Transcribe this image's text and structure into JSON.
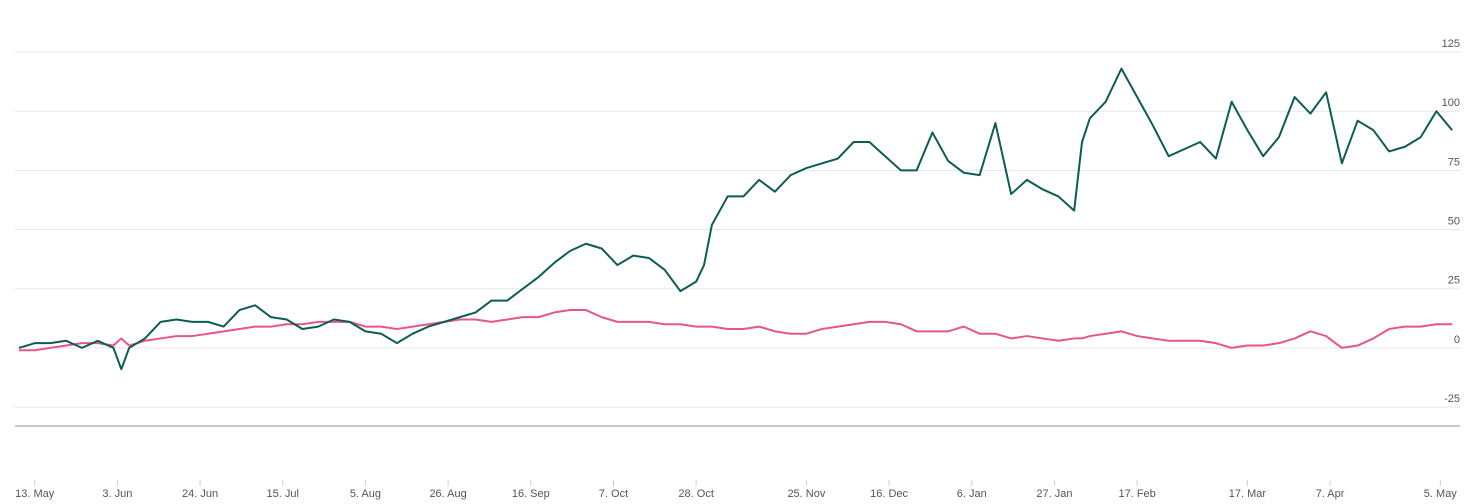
{
  "chart_data": {
    "type": "line",
    "x": [
      -4,
      0,
      4,
      8,
      12,
      16,
      20,
      22,
      24,
      28,
      32,
      36,
      40,
      44,
      48,
      52,
      56,
      60,
      64,
      68,
      72,
      76,
      80,
      84,
      88,
      92,
      96,
      100,
      104,
      108,
      112,
      116,
      120,
      124,
      128,
      132,
      136,
      140,
      144,
      148,
      152,
      156,
      160,
      164,
      168,
      170,
      172,
      176,
      180,
      184,
      188,
      192,
      196,
      200,
      204,
      208,
      212,
      216,
      220,
      224,
      228,
      232,
      236,
      240,
      244,
      248,
      252,
      256,
      260,
      264,
      266,
      268,
      272,
      276,
      280,
      284,
      288,
      292,
      296,
      300,
      304,
      308,
      312,
      316,
      320,
      324,
      328,
      332,
      336,
      340,
      344,
      348,
      352,
      356,
      360
    ],
    "series": [
      {
        "color": "#0d5c55",
        "values": [
          0,
          2,
          2,
          3,
          0,
          3,
          0,
          -9,
          0,
          4,
          11,
          12,
          11,
          11,
          9,
          16,
          18,
          13,
          12,
          8,
          9,
          12,
          11,
          7,
          6,
          2,
          6,
          9,
          11,
          13,
          15,
          20,
          20,
          25,
          30,
          36,
          41,
          44,
          42,
          35,
          39,
          38,
          33,
          24,
          28,
          35,
          52,
          64,
          64,
          71,
          66,
          73,
          76,
          78,
          80,
          87,
          87,
          81,
          75,
          75,
          91,
          79,
          74,
          73,
          95,
          65,
          71,
          67,
          64,
          58,
          87,
          97,
          104,
          118,
          106,
          94,
          81,
          84,
          87,
          80,
          104,
          92,
          81,
          89,
          106,
          99,
          108,
          78,
          96,
          92,
          83,
          85,
          89,
          100,
          92
        ]
      },
      {
        "color": "#e8558a",
        "values": [
          -1,
          -1,
          0,
          1,
          2,
          2,
          1,
          4,
          1,
          3,
          4,
          5,
          5,
          6,
          7,
          8,
          9,
          9,
          10,
          10,
          11,
          11,
          11,
          9,
          9,
          8,
          9,
          10,
          11,
          12,
          12,
          11,
          12,
          13,
          13,
          15,
          16,
          16,
          13,
          11,
          11,
          11,
          10,
          10,
          9,
          9,
          9,
          8,
          8,
          9,
          7,
          6,
          6,
          8,
          9,
          10,
          11,
          11,
          10,
          7,
          7,
          7,
          9,
          6,
          6,
          4,
          5,
          4,
          3,
          4,
          4,
          5,
          6,
          7,
          5,
          4,
          3,
          3,
          3,
          2,
          0,
          1,
          1,
          2,
          4,
          7,
          5,
          0,
          1,
          4,
          8,
          9,
          9,
          10,
          10
        ]
      }
    ],
    "xlim": [
      -5,
      362
    ],
    "xticks": [
      {
        "value": 0,
        "label": "13. May"
      },
      {
        "value": 21,
        "label": "3. Jun"
      },
      {
        "value": 42,
        "label": "24. Jun"
      },
      {
        "value": 63,
        "label": "15. Jul"
      },
      {
        "value": 84,
        "label": "5. Aug"
      },
      {
        "value": 105,
        "label": "26. Aug"
      },
      {
        "value": 126,
        "label": "16. Sep"
      },
      {
        "value": 147,
        "label": "7. Oct"
      },
      {
        "value": 168,
        "label": "28. Oct"
      },
      {
        "value": 196,
        "label": "25. Nov"
      },
      {
        "value": 217,
        "label": "16. Dec"
      },
      {
        "value": 238,
        "label": "6. Jan"
      },
      {
        "value": 259,
        "label": "27. Jan"
      },
      {
        "value": 280,
        "label": "17. Feb"
      },
      {
        "value": 308,
        "label": "17. Mar"
      },
      {
        "value": 329,
        "label": "7. Apr"
      },
      {
        "value": 357,
        "label": "5. May"
      }
    ],
    "ylim": [
      -33,
      147
    ],
    "yticks": [
      -25,
      0,
      25,
      50,
      75,
      100,
      125
    ],
    "grid": true
  }
}
